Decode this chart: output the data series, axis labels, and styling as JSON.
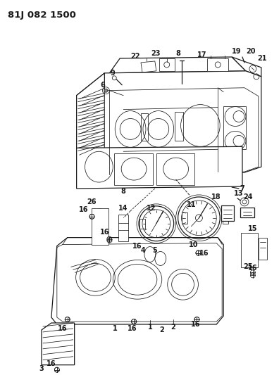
{
  "title": "81J 082 1500",
  "bg_color": "#ffffff",
  "line_color": "#1a1a1a",
  "lw_main": 0.9,
  "lw_thin": 0.55,
  "fs_label": 7.0,
  "fs_title": 9.5
}
